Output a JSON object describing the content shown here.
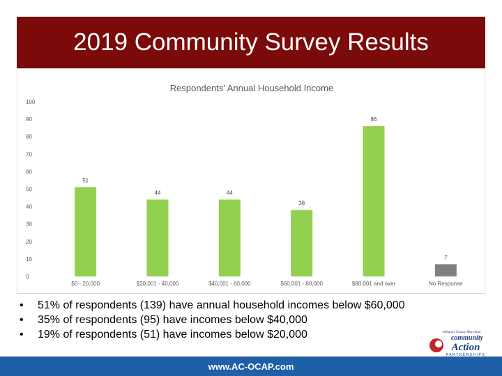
{
  "slide": {
    "title": "2019 Community Survey Results",
    "bullets": [
      "51% of respondents (139) have annual household incomes below $60,000",
      "35% of respondents (95) have incomes below $40,000",
      "19% of respondents (51) have incomes below $20,000"
    ],
    "footer_url": "www.AC-OCAP.com",
    "logo": {
      "top_text": "Allegany County Maryland",
      "word1": "community",
      "word2": "Action",
      "bottom_text": "PARTNERSHIPS"
    }
  },
  "colors": {
    "banner": "#7b0a0a",
    "bar": "#92d050",
    "bar_no_response": "#7f7f7f",
    "footer": "#1f5fa8"
  },
  "chart_data": {
    "type": "bar",
    "title": "Respondents' Annual Household Income",
    "categories": [
      "$0 - 20,000",
      "$20,001 - 40,000",
      "$40,001 - 60,000",
      "$60,001 - 80,000",
      "$80,001 and over",
      "No Response"
    ],
    "values": [
      51,
      44,
      44,
      38,
      86,
      7
    ],
    "ylim": [
      0,
      100
    ],
    "yticks": [
      "0",
      "10",
      "20",
      "30",
      "40",
      "50",
      "60",
      "70",
      "80",
      "90",
      "100"
    ],
    "grid": false,
    "legend": "none"
  }
}
